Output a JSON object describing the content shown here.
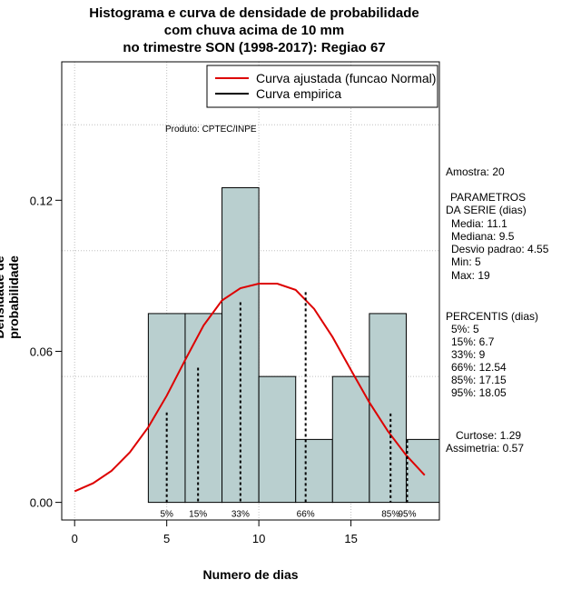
{
  "title_lines": [
    "Histograma e curva de densidade de probabilidade",
    "com chuva acima de 10 mm",
    "no trimestre SON (1998-2017): Regiao 67"
  ],
  "producer": "Produto: CPTEC/INPE",
  "stats": {
    "sample": "Amostra: 20",
    "params_header": [
      "PARAMETROS",
      "DA SERIE (dias)"
    ],
    "params": [
      "Media: 11.1",
      "Mediana: 9.5",
      "Desvio padrao: 4.55",
      "Min: 5",
      "Max: 19"
    ],
    "percentiles_header": "PERCENTIS (dias)",
    "percentiles": [
      "5%: 5",
      "15%: 6.7",
      "33%: 9",
      "66%: 12.54",
      "85%: 17.15",
      "95%: 18.05"
    ],
    "curtose": "Curtose: 1.29",
    "assimetria": "Assimetria: 0.57"
  },
  "colors": {
    "bar_fill": "#b9cfcf",
    "normal_curve": "#dd0000",
    "empirical": "#000000",
    "grid": "#c0c0c0"
  },
  "chart_data": {
    "type": "bar",
    "title": "Histograma e curva de densidade de probabilidade com chuva acima de 10 mm no trimestre SON (1998-2017): Regiao 67",
    "xlabel": "Numero de dias",
    "ylabel": "Densidade de probabilidade",
    "xlim": [
      -0.7,
      19.8
    ],
    "ylim": [
      -0.007,
      0.175
    ],
    "x_ticks": [
      0,
      5,
      10,
      15
    ],
    "y_ticks": [
      0.0,
      0.06,
      0.12
    ],
    "y_tick_labels": [
      "0.00",
      "0.06",
      "0.12"
    ],
    "grid": true,
    "bins": [
      {
        "x0": 4,
        "x1": 6,
        "density": 0.075
      },
      {
        "x0": 6,
        "x1": 8,
        "density": 0.075
      },
      {
        "x0": 8,
        "x1": 10,
        "density": 0.125
      },
      {
        "x0": 10,
        "x1": 12,
        "density": 0.05
      },
      {
        "x0": 12,
        "x1": 14,
        "density": 0.025
      },
      {
        "x0": 14,
        "x1": 16,
        "density": 0.05
      },
      {
        "x0": 16,
        "x1": 18,
        "density": 0.075
      },
      {
        "x0": 18,
        "x1": 20,
        "density": 0.025
      }
    ],
    "normal_curve": {
      "name": "Curva ajustada (funcao Normal)",
      "x": [
        0,
        1,
        2,
        3,
        4,
        5,
        6,
        7,
        8,
        9,
        10,
        11,
        12,
        13,
        14,
        15,
        16,
        17,
        18,
        19
      ],
      "y": [
        0.0044,
        0.0076,
        0.0125,
        0.0199,
        0.0299,
        0.0424,
        0.0566,
        0.0703,
        0.0802,
        0.0851,
        0.0869,
        0.0869,
        0.0844,
        0.0769,
        0.0657,
        0.0526,
        0.0397,
        0.0283,
        0.0187,
        0.0108
      ]
    },
    "empirical_curve": {
      "name": "Curva empirica"
    },
    "percentile_markers": [
      {
        "label": "5%",
        "x": 5,
        "y": 0.0357
      },
      {
        "label": "15%",
        "x": 6.7,
        "y": 0.0535
      },
      {
        "label": "33%",
        "x": 9,
        "y": 0.0795
      },
      {
        "label": "66%",
        "x": 12.54,
        "y": 0.0835
      },
      {
        "label": "85%",
        "x": 17.15,
        "y": 0.0353
      },
      {
        "label": "95%",
        "x": 18.05,
        "y": 0.0248
      }
    ],
    "legend": {
      "position": "top-right",
      "entries": [
        "Curva ajustada (funcao Normal)",
        "Curva empirica"
      ]
    }
  }
}
